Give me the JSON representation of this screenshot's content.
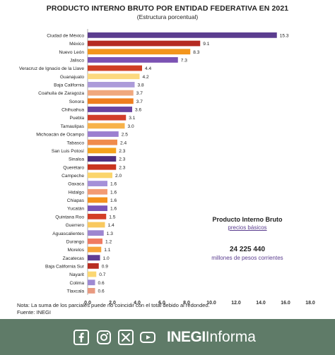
{
  "chart_data": {
    "type": "bar",
    "orientation": "horizontal",
    "title": "PRODUCTO INTERNO BRUTO POR ENTIDAD FEDERATIVA EN 2021",
    "subtitle": "(Estructura porcentual)",
    "xlim": [
      0,
      18
    ],
    "xticks": [
      "0.0",
      "2.0",
      "4.0",
      "6.0",
      "8.0",
      "10.0",
      "12.0",
      "14.0",
      "16.0",
      "18.0"
    ],
    "grid": false,
    "categories": [
      "Ciudad de México",
      "México",
      "Nuevo León",
      "Jalisco",
      "Veracruz de Ignacio de la Llave",
      "Guanajuato",
      "Baja California",
      "Coahuila de Zaragoza",
      "Sonora",
      "Chihuahua",
      "Puebla",
      "Tamaulipas",
      "Michoacán de Ocampo",
      "Tabasco",
      "San Luis Potosí",
      "Sinaloa",
      "Querétaro",
      "Campeche",
      "Oaxaca",
      "Hidalgo",
      "Chiapas",
      "Yucatán",
      "Quintana Roo",
      "Guerrero",
      "Aguascalientes",
      "Durango",
      "Morelos",
      "Zacatecas",
      "Baja California Sur",
      "Nayarit",
      "Colima",
      "Tlaxcala"
    ],
    "values": [
      15.3,
      9.1,
      8.3,
      7.3,
      4.4,
      4.2,
      3.8,
      3.7,
      3.7,
      3.6,
      3.1,
      3.0,
      2.5,
      2.4,
      2.3,
      2.3,
      2.3,
      2.0,
      1.6,
      1.6,
      1.6,
      1.6,
      1.5,
      1.4,
      1.3,
      1.2,
      1.1,
      1.0,
      0.9,
      0.7,
      0.6,
      0.6
    ],
    "value_labels": [
      "15.3",
      "9.1",
      "8.3",
      "7.3",
      "4.4",
      "4.2",
      "3.8",
      "3.7",
      "3.7",
      "3.6",
      "3.1",
      "3.0",
      "2.5",
      "2.4",
      "2.3",
      "2.3",
      "2.3",
      "2.0",
      "1.6",
      "1.6",
      "1.6",
      "1.6",
      "1.5",
      "1.4",
      "1.3",
      "1.2",
      "1.1",
      "1.0",
      "0.9",
      "0.7",
      "0.6",
      "0.6"
    ],
    "colors": [
      "#5b3d8f",
      "#b52a22",
      "#f3951c",
      "#7b52b3",
      "#cf3f25",
      "#fcd97e",
      "#ac9bd9",
      "#f0a87e",
      "#ef7f1f",
      "#6a44a0",
      "#d13e2a",
      "#f7b24a",
      "#9c7fd0",
      "#f08b4c",
      "#f5a31d",
      "#4f2f80",
      "#c9351f",
      "#fbd56b",
      "#a590d8",
      "#f39b74",
      "#f5921d",
      "#7a55b8",
      "#d33e27",
      "#f9c95f",
      "#9e86d0",
      "#f07b62",
      "#f7a43a",
      "#5f3d94",
      "#b82e22",
      "#fbd772",
      "#9e8ad2",
      "#e89a80"
    ],
    "annotation": {
      "title": "Producto Interno Bruto",
      "subtitle": "precios básicos",
      "value": "24 225 440",
      "unit": "millones de pesos corrientes"
    }
  },
  "notes": {
    "line1": "Nota: La suma de los parciales puede no coincidir con el total debido al redondeo.",
    "line2": "Fuente: INEGI"
  },
  "footer": {
    "social_icons": [
      "facebook-icon",
      "instagram-icon",
      "x-icon",
      "youtube-icon"
    ],
    "brand_bold": "INEGI",
    "brand_light": "Informa",
    "background": "#5f7b68"
  }
}
